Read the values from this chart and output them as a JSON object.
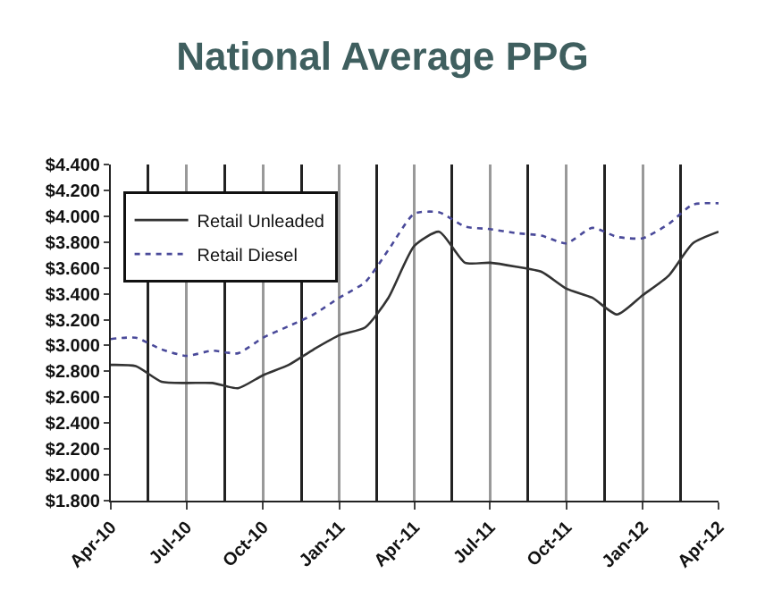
{
  "chart_data": {
    "type": "line",
    "title": "National Average PPG",
    "x": [
      "2010-04",
      "2010-05",
      "2010-06",
      "2010-07",
      "2010-08",
      "2010-09",
      "2010-10",
      "2010-11",
      "2010-12",
      "2011-01",
      "2011-02",
      "2011-03",
      "2011-04",
      "2011-05",
      "2011-06",
      "2011-07",
      "2011-08",
      "2011-09",
      "2011-10",
      "2011-11",
      "2011-12",
      "2012-01",
      "2012-02",
      "2012-03",
      "2012-04"
    ],
    "series": [
      {
        "name": "Retail Unleaded",
        "color": "#333333",
        "line_style": "solid",
        "values": [
          2.85,
          2.84,
          2.72,
          2.71,
          2.71,
          2.67,
          2.77,
          2.85,
          2.97,
          3.08,
          3.14,
          3.37,
          3.77,
          3.88,
          3.64,
          3.64,
          3.61,
          3.57,
          3.44,
          3.37,
          3.24,
          3.39,
          3.54,
          3.79,
          3.88
        ]
      },
      {
        "name": "Retail Diesel",
        "color": "#4a4a9a",
        "line_style": "dotted",
        "values": [
          3.05,
          3.06,
          2.97,
          2.92,
          2.96,
          2.94,
          3.06,
          3.15,
          3.24,
          3.37,
          3.49,
          3.74,
          4.02,
          4.03,
          3.92,
          3.9,
          3.87,
          3.85,
          3.79,
          3.91,
          3.84,
          3.83,
          3.94,
          4.09,
          4.1
        ]
      }
    ],
    "xlim": [
      "2010-04",
      "2012-04"
    ],
    "xticks": [
      {
        "value": "2010-04",
        "label": "Apr-10"
      },
      {
        "value": "2010-07",
        "label": "Jul-10"
      },
      {
        "value": "2010-10",
        "label": "Oct-10"
      },
      {
        "value": "2011-01",
        "label": "Jan-11"
      },
      {
        "value": "2011-04",
        "label": "Apr-11"
      },
      {
        "value": "2011-07",
        "label": "Jul-11"
      },
      {
        "value": "2011-10",
        "label": "Oct-11"
      },
      {
        "value": "2012-01",
        "label": "Jan-12"
      },
      {
        "value": "2012-04",
        "label": "Apr-12"
      }
    ],
    "ylim": [
      1.8,
      4.4
    ],
    "yticks": [
      {
        "value": 1.8,
        "label": "$1.800"
      },
      {
        "value": 2.0,
        "label": "$2.000"
      },
      {
        "value": 2.2,
        "label": "$2.200"
      },
      {
        "value": 2.4,
        "label": "$2.400"
      },
      {
        "value": 2.6,
        "label": "$2.600"
      },
      {
        "value": 2.8,
        "label": "$2.800"
      },
      {
        "value": 3.0,
        "label": "$3.000"
      },
      {
        "value": 3.2,
        "label": "$3.200"
      },
      {
        "value": 3.4,
        "label": "$3.400"
      },
      {
        "value": 3.6,
        "label": "$3.600"
      },
      {
        "value": 3.8,
        "label": "$3.800"
      },
      {
        "value": 4.0,
        "label": "$4.000"
      },
      {
        "value": 4.2,
        "label": "$4.200"
      },
      {
        "value": 4.4,
        "label": "$4.400"
      }
    ],
    "grid": "x",
    "legend": "top left"
  }
}
